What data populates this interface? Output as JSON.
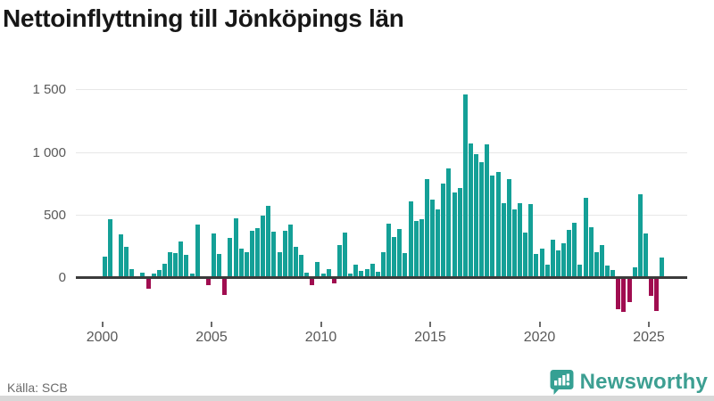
{
  "title": "Nettoinflyttning till Jönköpings län",
  "source": "Källa: SCB",
  "brand": {
    "name": "Newsworthy"
  },
  "colors": {
    "positive_bar": "#14a097",
    "negative_bar": "#a00d50",
    "grid": "#e7e7e7",
    "zero_line": "#3b3b3b",
    "axis_text": "#595959",
    "brand_teal": "#3d9f92"
  },
  "chart_data": {
    "type": "bar",
    "title": "Nettoinflyttning till Jönköpings län",
    "xlabel": "",
    "ylabel": "",
    "frequency": "quarterly",
    "period_start": "2000 Q1",
    "period_end": "2025 Q3",
    "grid": "horizontal",
    "ylim": [
      -300,
      1550
    ],
    "yticks": [
      {
        "value": 0,
        "label": "0"
      },
      {
        "value": 500,
        "label": "500"
      },
      {
        "value": 1000,
        "label": "1 000"
      },
      {
        "value": 1500,
        "label": "1 500"
      }
    ],
    "xticks": [
      {
        "year": 2000,
        "label": "2000"
      },
      {
        "year": 2005,
        "label": "2005"
      },
      {
        "year": 2010,
        "label": "2010"
      },
      {
        "year": 2015,
        "label": "2015"
      },
      {
        "year": 2020,
        "label": "2020"
      },
      {
        "year": 2025,
        "label": "2025"
      }
    ],
    "values": [
      165,
      465,
      10,
      340,
      240,
      65,
      10,
      35,
      -80,
      25,
      55,
      110,
      200,
      195,
      285,
      175,
      30,
      420,
      10,
      -50,
      350,
      185,
      -130,
      310,
      470,
      225,
      200,
      370,
      390,
      490,
      570,
      360,
      200,
      370,
      420,
      245,
      175,
      35,
      -50,
      120,
      30,
      65,
      -35,
      255,
      355,
      30,
      100,
      50,
      65,
      105,
      40,
      200,
      430,
      320,
      385,
      190,
      605,
      450,
      460,
      780,
      620,
      540,
      745,
      870,
      675,
      710,
      1460,
      1065,
      985,
      920,
      1060,
      815,
      840,
      590,
      785,
      540,
      590,
      355,
      585,
      185,
      225,
      100,
      300,
      215,
      270,
      375,
      435,
      100,
      635,
      400,
      200,
      255,
      90,
      55,
      -240,
      -260,
      -185,
      80,
      660,
      350,
      -135,
      -255,
      155
    ]
  }
}
